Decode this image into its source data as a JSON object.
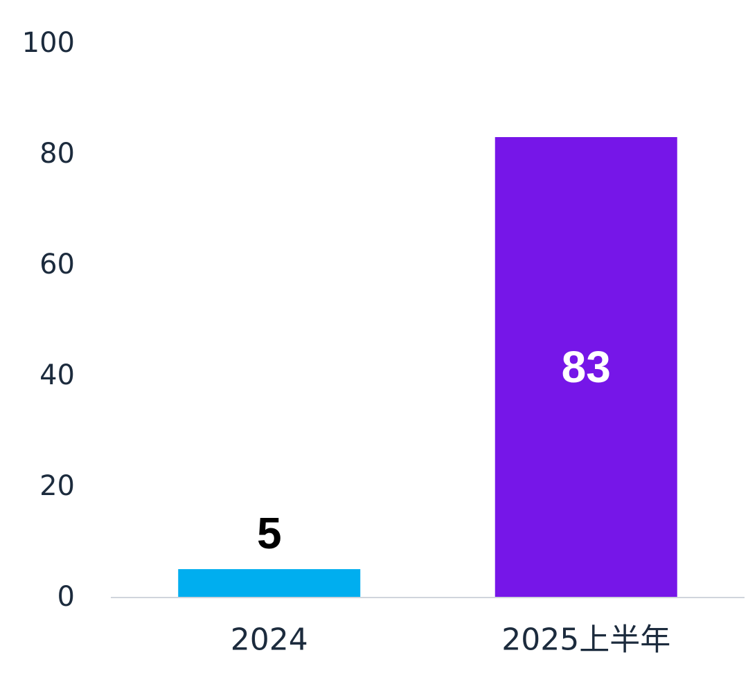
{
  "chart_data": {
    "type": "bar",
    "categories": [
      "2024",
      "2025上半年"
    ],
    "values": [
      5,
      83
    ],
    "colors": [
      "#00aeef",
      "#7616e8"
    ],
    "data_label_colors": [
      "#000000",
      "#ffffff"
    ],
    "data_label_position": [
      "above",
      "inside-center"
    ],
    "yticks": [
      0,
      20,
      40,
      60,
      80,
      100
    ],
    "ylim": [
      0,
      100
    ],
    "grid": false,
    "legend": false,
    "axis_color": "#d0d5dc",
    "text_color": "#1c2b3d"
  }
}
